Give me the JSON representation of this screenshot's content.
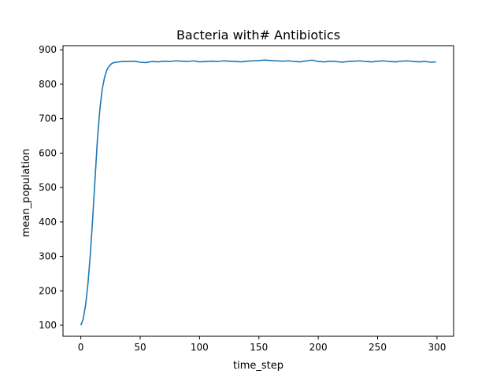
{
  "chart_data": {
    "type": "line",
    "title": "Bacteria with# Antibiotics",
    "xlabel": "time_step",
    "ylabel": "mean_population",
    "xlim": [
      -15,
      314
    ],
    "ylim": [
      68,
      912
    ],
    "grid": false,
    "legend": "none",
    "xticks": [
      0,
      50,
      100,
      150,
      200,
      250,
      300
    ],
    "yticks": [
      100,
      200,
      300,
      400,
      500,
      600,
      700,
      800,
      900
    ],
    "series": [
      {
        "color": "#1f77b4",
        "x": [
          0,
          2,
          4,
          6,
          8,
          10,
          12,
          14,
          16,
          18,
          20,
          22,
          24,
          26,
          28,
          30,
          32,
          35,
          40,
          45,
          50,
          55,
          60,
          65,
          70,
          75,
          80,
          85,
          90,
          95,
          100,
          105,
          110,
          115,
          120,
          125,
          130,
          135,
          140,
          145,
          150,
          155,
          160,
          165,
          170,
          175,
          180,
          185,
          190,
          195,
          200,
          205,
          210,
          215,
          220,
          225,
          230,
          235,
          240,
          245,
          250,
          255,
          260,
          265,
          270,
          275,
          280,
          285,
          290,
          295,
          299
        ],
        "y": [
          100,
          118,
          158,
          220,
          305,
          410,
          525,
          640,
          725,
          785,
          820,
          842,
          853,
          860,
          863,
          864,
          865,
          866,
          866,
          867,
          864,
          863,
          866,
          865,
          867,
          866,
          868,
          867,
          866,
          868,
          865,
          866,
          867,
          866,
          868,
          867,
          866,
          865,
          867,
          868,
          869,
          870,
          869,
          868,
          867,
          868,
          866,
          865,
          868,
          870,
          866,
          865,
          867,
          866,
          864,
          866,
          867,
          868,
          866,
          865,
          867,
          868,
          866,
          865,
          867,
          868,
          866,
          865,
          866,
          864,
          865
        ]
      }
    ]
  }
}
